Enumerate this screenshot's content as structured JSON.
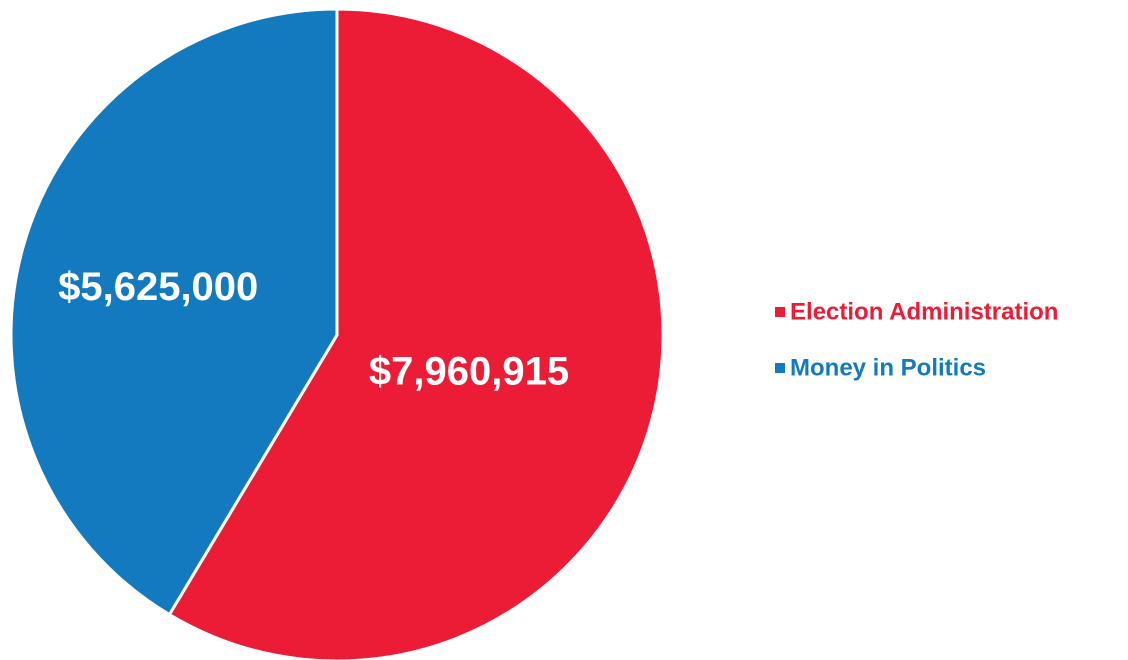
{
  "chart_data": {
    "type": "pie",
    "title": "",
    "slices": [
      {
        "label": "Election Administration",
        "value": 7960915,
        "value_label": "$7,960,915",
        "color": "#ED1C36"
      },
      {
        "label": "Money in Politics",
        "value": 5625000,
        "value_label": "$5,625,000",
        "color": "#137ABF"
      }
    ],
    "start_angle_deg": 0,
    "direction": "clockwise",
    "legend": {
      "position": "right",
      "items": [
        {
          "label": "Election Administration",
          "color": "#ED1C36"
        },
        {
          "label": "Money in Politics",
          "color": "#137ABF"
        }
      ]
    }
  }
}
